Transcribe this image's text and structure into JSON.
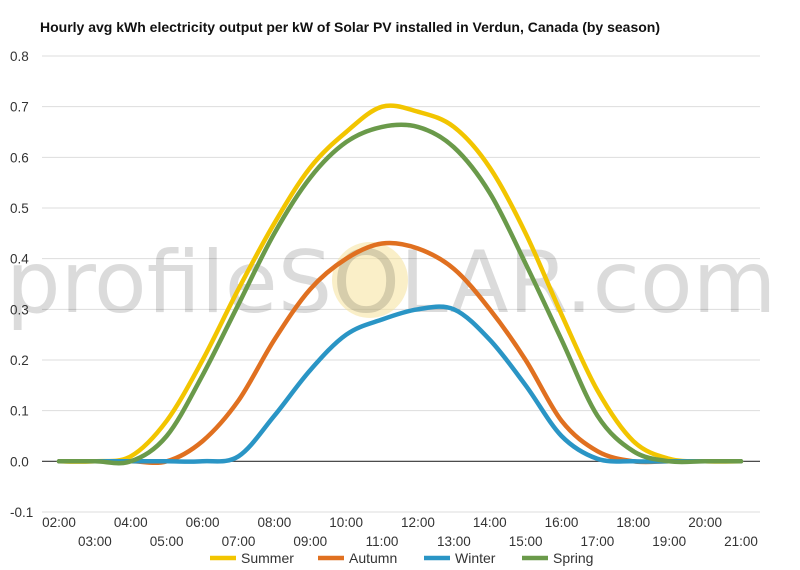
{
  "chart_data": {
    "type": "line",
    "title": "Hourly avg kWh electricity output per kW of Solar PV installed in Verdun, Canada (by season)",
    "xlabel": "",
    "ylabel": "",
    "ylim": [
      -0.1,
      0.8
    ],
    "yticks": [
      "-0.1",
      "0.0",
      "0.1",
      "0.2",
      "0.3",
      "0.4",
      "0.5",
      "0.6",
      "0.7",
      "0.8"
    ],
    "x": [
      "02:00",
      "03:00",
      "04:00",
      "05:00",
      "06:00",
      "07:00",
      "08:00",
      "09:00",
      "10:00",
      "11:00",
      "12:00",
      "13:00",
      "14:00",
      "15:00",
      "16:00",
      "17:00",
      "18:00",
      "19:00",
      "20:00",
      "21:00"
    ],
    "grid": true,
    "legend_position": "bottom",
    "series": [
      {
        "name": "Summer",
        "color": "#f2c500",
        "values": [
          0.0,
          0.0,
          0.01,
          0.08,
          0.2,
          0.34,
          0.47,
          0.58,
          0.65,
          0.7,
          0.69,
          0.66,
          0.58,
          0.45,
          0.29,
          0.14,
          0.04,
          0.005,
          0.0,
          0.0
        ]
      },
      {
        "name": "Autumn",
        "color": "#e07020",
        "values": [
          0.0,
          0.0,
          0.0,
          0.0,
          0.04,
          0.12,
          0.24,
          0.34,
          0.4,
          0.43,
          0.42,
          0.38,
          0.3,
          0.2,
          0.08,
          0.02,
          0.0,
          0.0,
          0.0,
          0.0
        ]
      },
      {
        "name": "Winter",
        "color": "#2a95c5",
        "values": [
          0.0,
          0.0,
          0.0,
          0.0,
          0.0,
          0.01,
          0.09,
          0.18,
          0.25,
          0.28,
          0.3,
          0.3,
          0.24,
          0.15,
          0.05,
          0.005,
          0.0,
          0.0,
          0.0,
          0.0
        ]
      },
      {
        "name": "Spring",
        "color": "#6a9a4a",
        "values": [
          0.0,
          0.0,
          0.0,
          0.05,
          0.17,
          0.31,
          0.45,
          0.56,
          0.63,
          0.66,
          0.66,
          0.62,
          0.53,
          0.39,
          0.24,
          0.09,
          0.02,
          0.0,
          0.0,
          0.0
        ]
      }
    ]
  },
  "watermark": {
    "text": "profileSOLAR.com"
  }
}
